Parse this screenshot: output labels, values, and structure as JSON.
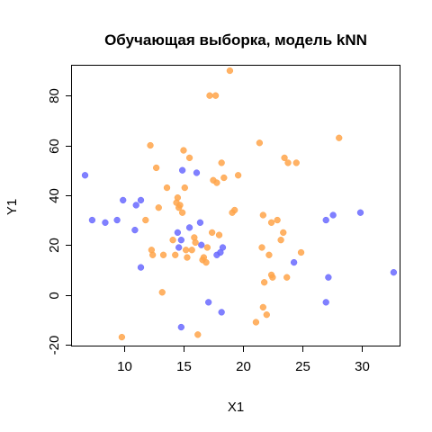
{
  "chart_data": {
    "type": "scatter",
    "title": "Обучающая выборка, модель kNN",
    "xlabel": "X1",
    "ylabel": "Y1",
    "xlim": [
      5.6,
      33.2
    ],
    "ylim": [
      -20.4,
      92.0
    ],
    "x_ticks": [
      10,
      15,
      20,
      25,
      30
    ],
    "y_ticks": [
      -20,
      0,
      20,
      40,
      60,
      80
    ],
    "grid": false,
    "legend": "none",
    "colors": {
      "blue": "#6a6aff",
      "orange": "#ffa54a"
    },
    "series": [
      {
        "color_key": "blue",
        "points": [
          [
            6.7,
            48
          ],
          [
            7.3,
            30
          ],
          [
            8.4,
            29
          ],
          [
            9.4,
            30
          ],
          [
            9.9,
            38
          ],
          [
            10.9,
            26
          ],
          [
            11.0,
            36
          ],
          [
            11.4,
            38
          ],
          [
            11.4,
            11
          ],
          [
            14.5,
            25
          ],
          [
            14.6,
            19
          ],
          [
            14.8,
            22
          ],
          [
            14.8,
            -13
          ],
          [
            14.9,
            50
          ],
          [
            15.5,
            27
          ],
          [
            16.1,
            49
          ],
          [
            16.4,
            29
          ],
          [
            16.5,
            20
          ],
          [
            17.1,
            -3
          ],
          [
            17.8,
            16
          ],
          [
            18.1,
            17
          ],
          [
            18.3,
            19
          ],
          [
            18.2,
            -7
          ],
          [
            24.3,
            13
          ],
          [
            27.0,
            30
          ],
          [
            27.0,
            -3
          ],
          [
            27.2,
            7
          ],
          [
            27.6,
            32
          ],
          [
            29.9,
            33
          ],
          [
            32.7,
            9
          ]
        ]
      },
      {
        "color_key": "orange",
        "points": [
          [
            9.8,
            -17
          ],
          [
            11.8,
            30
          ],
          [
            12.2,
            60
          ],
          [
            12.3,
            18
          ],
          [
            12.4,
            16
          ],
          [
            12.7,
            51
          ],
          [
            12.9,
            35
          ],
          [
            13.2,
            1
          ],
          [
            13.3,
            16
          ],
          [
            13.6,
            43
          ],
          [
            14.1,
            22
          ],
          [
            14.3,
            16
          ],
          [
            14.4,
            37
          ],
          [
            14.5,
            39
          ],
          [
            14.6,
            35
          ],
          [
            14.7,
            36
          ],
          [
            14.9,
            33
          ],
          [
            15.0,
            58
          ],
          [
            15.1,
            43
          ],
          [
            15.2,
            18
          ],
          [
            15.3,
            15
          ],
          [
            15.5,
            55
          ],
          [
            15.7,
            18
          ],
          [
            15.9,
            23
          ],
          [
            16.0,
            21
          ],
          [
            16.2,
            -16
          ],
          [
            16.6,
            14
          ],
          [
            16.7,
            15
          ],
          [
            16.9,
            13
          ],
          [
            17.0,
            19
          ],
          [
            17.2,
            80
          ],
          [
            17.4,
            25
          ],
          [
            17.5,
            46
          ],
          [
            17.7,
            80
          ],
          [
            17.8,
            45
          ],
          [
            18.0,
            24
          ],
          [
            18.2,
            53
          ],
          [
            18.4,
            47
          ],
          [
            18.9,
            90
          ],
          [
            19.1,
            33
          ],
          [
            19.3,
            34
          ],
          [
            19.6,
            48
          ],
          [
            21.1,
            -11
          ],
          [
            21.4,
            61
          ],
          [
            21.6,
            19
          ],
          [
            21.7,
            32
          ],
          [
            21.7,
            -5
          ],
          [
            21.8,
            5
          ],
          [
            22.0,
            -8
          ],
          [
            22.2,
            16
          ],
          [
            22.4,
            29
          ],
          [
            22.4,
            8
          ],
          [
            22.5,
            7
          ],
          [
            22.9,
            30
          ],
          [
            23.2,
            22
          ],
          [
            23.4,
            25
          ],
          [
            23.5,
            55
          ],
          [
            23.7,
            7
          ],
          [
            23.8,
            53
          ],
          [
            24.5,
            53
          ],
          [
            24.9,
            17
          ],
          [
            28.1,
            63
          ]
        ]
      }
    ]
  }
}
